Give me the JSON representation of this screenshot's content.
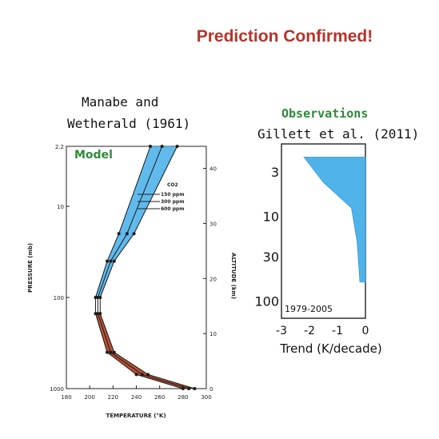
{
  "slide": {
    "title": "Prediction Confirmed!",
    "left_heading_line1": "Manabe and",
    "left_heading_line2": "Wetherald (1961)",
    "right_heading_line1": "Observations",
    "right_heading_line2": "Gillett et al. (2011)"
  },
  "colors": {
    "title": "#b5342a",
    "label_green": "#2e8a3a",
    "stratosphere_fill": "#4fb3ea",
    "troposphere_fill": "#b5492b"
  },
  "chart_data": [
    {
      "type": "line",
      "panel_label": "Model",
      "xlabel": "TEMPERATURE (°K)",
      "ylabel": "PRESSURE (mb)",
      "y2label": "ALTITUDE (km)",
      "xticks": [
        "180",
        "200",
        "220",
        "240",
        "260",
        "280",
        "300"
      ],
      "xlim": [
        180,
        300
      ],
      "yticks": [
        "2.2",
        "10",
        "100",
        "1000"
      ],
      "ylim_log": [
        2.2,
        1000
      ],
      "y_scale": "log",
      "y2ticks": [
        "0",
        "10",
        "20",
        "30",
        "40"
      ],
      "legend_title": "CO2",
      "series": [
        {
          "name": "150 ppm",
          "points": [
            [
              280,
              1000
            ],
            [
              240,
              700
            ],
            [
              215,
              400
            ],
            [
              205,
              150
            ],
            [
              205,
              100
            ],
            [
              215,
              40
            ],
            [
              225,
              20
            ],
            [
              252,
              2.2
            ]
          ]
        },
        {
          "name": "300 ppm",
          "points": [
            [
              285,
              1000
            ],
            [
              245,
              700
            ],
            [
              218,
              400
            ],
            [
              207,
              150
            ],
            [
              207,
              100
            ],
            [
              218,
              40
            ],
            [
              232,
              20
            ],
            [
              262,
              2.2
            ]
          ]
        },
        {
          "name": "600 ppm",
          "points": [
            [
              290,
              1000
            ],
            [
              250,
              700
            ],
            [
              221,
              400
            ],
            [
              209,
              150
            ],
            [
              209,
              100
            ],
            [
              221,
              40
            ],
            [
              238,
              20
            ],
            [
              275,
              2.2
            ]
          ]
        }
      ]
    },
    {
      "type": "area",
      "panel_label": "1979-2005",
      "xlabel": "Trend (K/decade)",
      "xticks": [
        "-3",
        "-2",
        "-1",
        "0"
      ],
      "xlim": [
        -3,
        0
      ],
      "yticks": [
        "3",
        "10",
        "30",
        "100"
      ],
      "y_scale": "log",
      "series": [
        {
          "name": "",
          "left": [
            [
              -2.2,
              2
            ],
            [
              -1.5,
              4
            ],
            [
              -0.5,
              8
            ],
            [
              -0.3,
              20
            ],
            [
              -0.2,
              60
            ]
          ],
          "right": [
            [
              0,
              2
            ],
            [
              0,
              60
            ]
          ]
        }
      ]
    }
  ]
}
